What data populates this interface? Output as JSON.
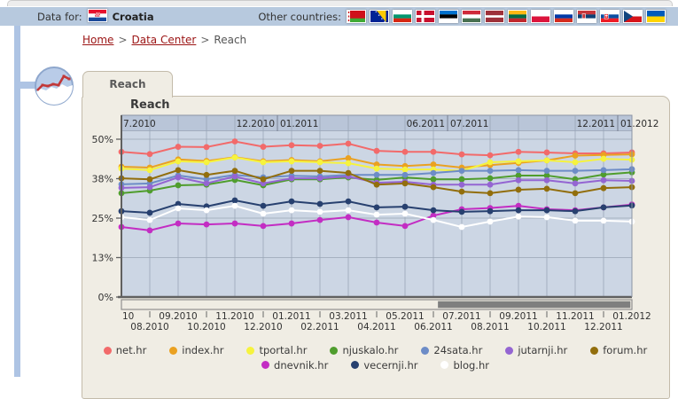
{
  "header": {
    "data_for_label": "Data for:",
    "country": "Croatia",
    "country_flag": "croatia",
    "other_countries_label": "Other countries:",
    "other_countries": [
      "belarus",
      "bosnia-herzegovina",
      "bulgaria",
      "denmark",
      "estonia",
      "hungary",
      "latvia",
      "lithuania",
      "poland",
      "russia",
      "serbia",
      "slovakia",
      "czech-republic",
      "ukraine"
    ]
  },
  "breadcrumb": {
    "separator": ">",
    "items": [
      {
        "label": "Home",
        "link": true
      },
      {
        "label": "Data Center",
        "link": true
      },
      {
        "label": "Reach",
        "link": false
      }
    ]
  },
  "tab": {
    "label": "Reach"
  },
  "chart_data": {
    "type": "line",
    "title": "Reach",
    "xlabel": "",
    "ylabel": "",
    "unit": "%",
    "ylim": [
      0,
      52.5
    ],
    "grid": true,
    "legend_position": "bottom",
    "legend_rows": [
      7,
      3
    ],
    "categories": [
      "07.2010",
      "08.2010",
      "09.2010",
      "10.2010",
      "11.2010",
      "12.2010",
      "01.2011",
      "02.2011",
      "03.2011",
      "04.2011",
      "05.2011",
      "06.2011",
      "07.2011",
      "08.2011",
      "09.2011",
      "10.2011",
      "11.2011",
      "12.2011",
      "01.2012"
    ],
    "x_axis_display": {
      "row1": [
        "10",
        "09.2010",
        "11.2010",
        "01.2011",
        "03.2011",
        "05.2011",
        "07.2011",
        "09.2011",
        "11.2011",
        "01.2012"
      ],
      "row2": [
        "08.2010",
        "10.2010",
        "12.2010",
        "02.2011",
        "04.2011",
        "06.2011",
        "08.2011",
        "10.2011",
        "12.2011"
      ]
    },
    "top_axis_labels": [
      {
        "label": "7.2010",
        "boundary": 0,
        "side": "right"
      },
      {
        "label": "12.2010",
        "boundary": 5.5,
        "side": "left"
      },
      {
        "label": "01.2011",
        "boundary": 5.5,
        "side": "right"
      },
      {
        "label": "06.2011",
        "boundary": 11.5,
        "side": "left"
      },
      {
        "label": "07.2011",
        "boundary": 11.5,
        "side": "right"
      },
      {
        "label": "12.2011",
        "boundary": 17.5,
        "side": "left"
      },
      {
        "label": "01.2012",
        "boundary": 17.5,
        "side": "right"
      }
    ],
    "y_ticks": [
      {
        "value": 0,
        "label": "0%"
      },
      {
        "value": 12.5,
        "label": "13%"
      },
      {
        "value": 25,
        "label": "25%"
      },
      {
        "value": 37.5,
        "label": "38%"
      },
      {
        "value": 50,
        "label": "50%"
      }
    ],
    "series": [
      {
        "name": "net.hr",
        "color": "#f26a6a",
        "values": [
          46.0,
          45.3,
          47.6,
          47.5,
          49.3,
          47.6,
          48.1,
          47.9,
          48.6,
          46.3,
          46.0,
          46.0,
          45.2,
          44.9,
          46.0,
          45.8,
          45.5,
          45.5,
          45.8
        ]
      },
      {
        "name": "index.hr",
        "color": "#eaa121",
        "values": [
          41.3,
          41.0,
          43.6,
          43.1,
          44.3,
          43.0,
          43.4,
          43.0,
          44.0,
          42.0,
          41.5,
          42.0,
          41.0,
          41.8,
          42.5,
          43.3,
          44.8,
          45.0,
          45.2
        ]
      },
      {
        "name": "tportal.hr",
        "color": "#f6f33e",
        "values": [
          40.7,
          40.2,
          43.0,
          42.7,
          44.2,
          42.7,
          43.0,
          42.7,
          42.4,
          40.7,
          40.4,
          40.4,
          40.0,
          42.7,
          43.0,
          43.3,
          42.7,
          43.8,
          43.5
        ]
      },
      {
        "name": "njuskalo.hr",
        "color": "#4f9d2d",
        "values": [
          32.9,
          33.7,
          35.4,
          35.6,
          37.1,
          35.4,
          37.3,
          37.3,
          37.9,
          37.1,
          37.9,
          37.3,
          37.3,
          37.6,
          38.5,
          38.5,
          37.3,
          38.8,
          39.5
        ]
      },
      {
        "name": "24sata.hr",
        "color": "#6d8cc7",
        "values": [
          35.7,
          36.0,
          38.5,
          37.3,
          38.7,
          37.9,
          38.4,
          38.2,
          38.7,
          38.7,
          38.7,
          39.3,
          40.0,
          40.0,
          40.2,
          40.0,
          40.0,
          40.2,
          40.5
        ]
      },
      {
        "name": "jutarnji.hr",
        "color": "#9465d2",
        "values": [
          34.6,
          34.8,
          37.9,
          36.0,
          38.2,
          36.0,
          37.6,
          37.6,
          38.2,
          36.2,
          36.5,
          35.6,
          35.6,
          35.6,
          37.0,
          37.0,
          36.0,
          37.0,
          36.8
        ]
      },
      {
        "name": "forum.hr",
        "color": "#926e0c",
        "values": [
          37.6,
          37.3,
          40.2,
          38.7,
          40.0,
          37.3,
          40.0,
          40.0,
          39.3,
          35.6,
          36.0,
          34.8,
          33.4,
          32.9,
          34.0,
          34.3,
          32.9,
          34.5,
          34.8
        ]
      },
      {
        "name": "dnevnik.hr",
        "color": "#c32dc3",
        "values": [
          22.2,
          21.1,
          23.3,
          23.0,
          23.3,
          22.5,
          23.3,
          24.4,
          25.3,
          23.6,
          22.5,
          25.8,
          27.8,
          28.2,
          28.9,
          27.8,
          27.5,
          28.4,
          29.3
        ]
      },
      {
        "name": "vecernji.hr",
        "color": "#27406f",
        "values": [
          27.2,
          26.7,
          29.5,
          28.7,
          30.6,
          28.9,
          30.3,
          29.5,
          30.3,
          28.4,
          28.6,
          27.5,
          27.0,
          27.2,
          27.5,
          27.5,
          27.2,
          28.4,
          29.0
        ]
      },
      {
        "name": "blog.hr",
        "color": "#ffffff",
        "values": [
          25.3,
          24.4,
          28.1,
          27.5,
          28.9,
          26.4,
          27.5,
          27.0,
          27.5,
          26.1,
          26.4,
          24.4,
          22.2,
          23.9,
          25.5,
          25.3,
          24.2,
          24.2,
          23.9
        ]
      }
    ],
    "scrollbar": {
      "start_frac": 0.62,
      "end_frac": 0.997
    }
  },
  "colors": {
    "header_bg": "#b7c9de",
    "rail": "#aec4e4",
    "panel_bg": "#f0ede4",
    "plot_bg": "#ccd6e4",
    "band_bg": "#b9c5d8",
    "grid": "#9aa6b6",
    "axis": "#606060",
    "link": "#9b1414",
    "scroll_thumb": "#7f7f7f"
  }
}
